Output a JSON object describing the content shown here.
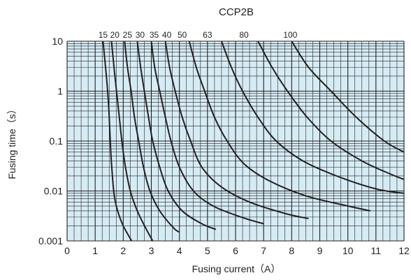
{
  "chart_data": {
    "type": "line",
    "title": "CCP2B",
    "xlabel": "Fusing current（A）",
    "ylabel": "Fusing time（s）",
    "x_scale": "linear",
    "y_scale": "log",
    "xlim": [
      0,
      12
    ],
    "ylim": [
      0.001,
      10
    ],
    "x_ticks": [
      "0",
      "1",
      "2",
      "3",
      "4",
      "5",
      "6",
      "7",
      "8",
      "9",
      "10",
      "11",
      "12"
    ],
    "y_ticks": [
      "0.001",
      "0.01",
      "0.1",
      "1",
      "10"
    ],
    "grid": true,
    "plot_background": "#d6ecf5",
    "grid_color": "#231f20",
    "line_color": "#231f20",
    "series": [
      {
        "name": "15",
        "points": [
          [
            1.28,
            10
          ],
          [
            1.37,
            3
          ],
          [
            1.45,
            0.9
          ],
          [
            1.5,
            0.3
          ],
          [
            1.55,
            0.07
          ],
          [
            1.6,
            0.025
          ],
          [
            1.68,
            0.008
          ],
          [
            1.8,
            0.004
          ],
          [
            2.0,
            0.002
          ],
          [
            2.3,
            0.001
          ]
        ]
      },
      {
        "name": "20",
        "points": [
          [
            1.58,
            10
          ],
          [
            1.67,
            3
          ],
          [
            1.76,
            1
          ],
          [
            1.86,
            0.3
          ],
          [
            1.95,
            0.1
          ],
          [
            2.08,
            0.03
          ],
          [
            2.25,
            0.01
          ],
          [
            2.5,
            0.004
          ],
          [
            2.8,
            0.0018
          ],
          [
            3.05,
            0.001
          ]
        ]
      },
      {
        "name": "25",
        "points": [
          [
            2.05,
            10
          ],
          [
            2.15,
            3
          ],
          [
            2.28,
            1
          ],
          [
            2.4,
            0.3
          ],
          [
            2.55,
            0.1
          ],
          [
            2.72,
            0.03
          ],
          [
            2.95,
            0.01
          ],
          [
            3.3,
            0.004
          ],
          [
            3.8,
            0.0018
          ],
          [
            4.0,
            0.0015
          ]
        ]
      },
      {
        "name": "30",
        "points": [
          [
            2.5,
            10
          ],
          [
            2.62,
            3
          ],
          [
            2.75,
            1
          ],
          [
            2.9,
            0.3
          ],
          [
            3.05,
            0.1
          ],
          [
            3.3,
            0.03
          ],
          [
            3.6,
            0.01
          ],
          [
            4.1,
            0.004
          ],
          [
            4.8,
            0.0022
          ],
          [
            5.3,
            0.0017
          ]
        ]
      },
      {
        "name": "35",
        "points": [
          [
            3.0,
            10
          ],
          [
            3.12,
            3
          ],
          [
            3.3,
            1
          ],
          [
            3.5,
            0.3
          ],
          [
            3.7,
            0.1
          ],
          [
            4.0,
            0.03
          ],
          [
            4.5,
            0.01
          ],
          [
            5.2,
            0.005
          ],
          [
            6.2,
            0.003
          ],
          [
            7.0,
            0.0022
          ]
        ]
      },
      {
        "name": "40",
        "points": [
          [
            3.5,
            10
          ],
          [
            3.65,
            3
          ],
          [
            3.85,
            1
          ],
          [
            4.1,
            0.3
          ],
          [
            4.4,
            0.1
          ],
          [
            4.8,
            0.03
          ],
          [
            5.5,
            0.012
          ],
          [
            6.5,
            0.006
          ],
          [
            7.8,
            0.0035
          ],
          [
            8.6,
            0.0028
          ]
        ]
      },
      {
        "name": "50",
        "points": [
          [
            4.35,
            10
          ],
          [
            4.6,
            3
          ],
          [
            4.9,
            1
          ],
          [
            5.25,
            0.3
          ],
          [
            5.7,
            0.1
          ],
          [
            6.3,
            0.035
          ],
          [
            7.2,
            0.016
          ],
          [
            8.5,
            0.008
          ],
          [
            10.0,
            0.005
          ],
          [
            10.8,
            0.004
          ]
        ]
      },
      {
        "name": "63",
        "points": [
          [
            5.5,
            10
          ],
          [
            5.85,
            3
          ],
          [
            6.25,
            1
          ],
          [
            6.8,
            0.3
          ],
          [
            7.45,
            0.1
          ],
          [
            8.4,
            0.04
          ],
          [
            9.6,
            0.02
          ],
          [
            11.0,
            0.011
          ],
          [
            12.0,
            0.009
          ]
        ]
      },
      {
        "name": "80",
        "points": [
          [
            6.8,
            10
          ],
          [
            7.3,
            3
          ],
          [
            7.85,
            1
          ],
          [
            8.55,
            0.3
          ],
          [
            9.4,
            0.1
          ],
          [
            10.5,
            0.04
          ],
          [
            11.5,
            0.022
          ],
          [
            12.0,
            0.017
          ]
        ]
      },
      {
        "name": "100",
        "points": [
          [
            8.0,
            10
          ],
          [
            8.6,
            3
          ],
          [
            9.4,
            1
          ],
          [
            10.3,
            0.3
          ],
          [
            11.3,
            0.1
          ],
          [
            12.0,
            0.06
          ]
        ]
      }
    ],
    "curve_labels": [
      {
        "text": "15",
        "x": 1.28
      },
      {
        "text": "20",
        "x": 1.7
      },
      {
        "text": "25",
        "x": 2.15
      },
      {
        "text": "30",
        "x": 2.6
      },
      {
        "text": "35",
        "x": 3.1
      },
      {
        "text": "40",
        "x": 3.55
      },
      {
        "text": "50",
        "x": 4.1
      },
      {
        "text": "63",
        "x": 5.0
      },
      {
        "text": "80",
        "x": 6.3
      },
      {
        "text": "100",
        "x": 7.95
      }
    ]
  }
}
